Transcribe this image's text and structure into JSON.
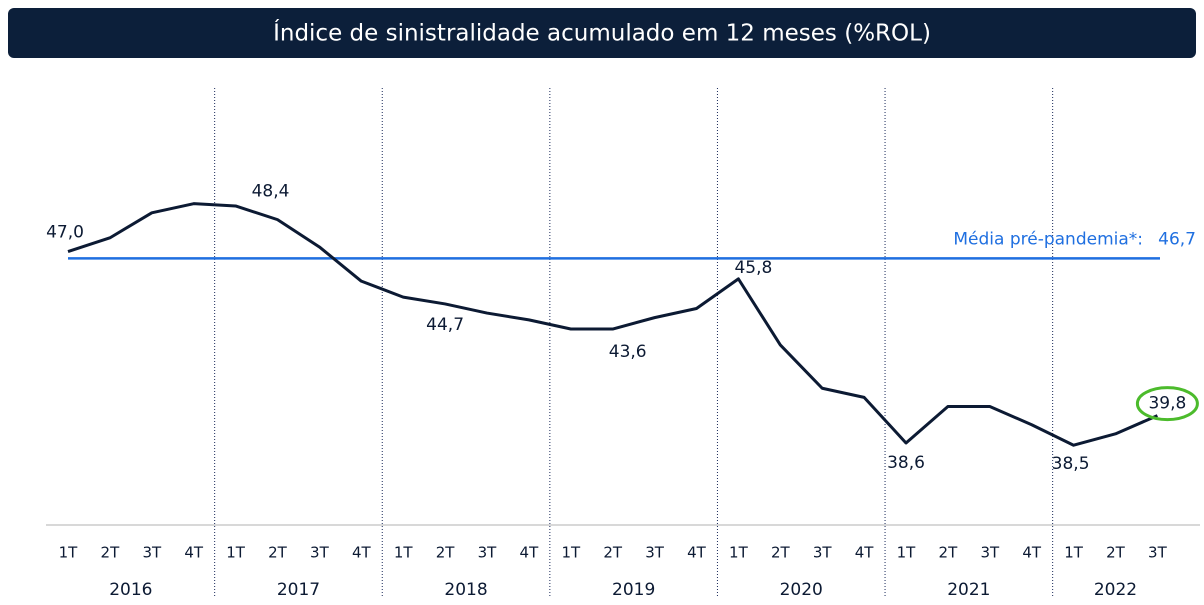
{
  "chart_data": {
    "type": "line",
    "title": "Índice de sinistralidade acumulado em 12 meses (%ROL)",
    "groups": [
      {
        "name": "2016",
        "categories": [
          "1T",
          "2T",
          "3T",
          "4T"
        ]
      },
      {
        "name": "2017",
        "categories": [
          "1T",
          "2T",
          "3T",
          "4T"
        ]
      },
      {
        "name": "2018",
        "categories": [
          "1T",
          "2T",
          "3T",
          "4T"
        ]
      },
      {
        "name": "2019",
        "categories": [
          "1T",
          "2T",
          "3T",
          "4T"
        ]
      },
      {
        "name": "2020",
        "categories": [
          "1T",
          "2T",
          "3T",
          "4T"
        ]
      },
      {
        "name": "2021",
        "categories": [
          "1T",
          "2T",
          "3T",
          "4T"
        ]
      },
      {
        "name": "2022",
        "categories": [
          "1T",
          "2T",
          "3T"
        ]
      }
    ],
    "color": "#0c1a33",
    "values": [
      47.0,
      47.6,
      48.7,
      49.1,
      49.0,
      48.4,
      47.2,
      45.7,
      45.0,
      44.7,
      44.3,
      44.0,
      43.6,
      43.6,
      44.1,
      44.5,
      45.8,
      42.9,
      41.0,
      40.6,
      38.6,
      40.2,
      40.2,
      39.4,
      38.5,
      39.0,
      39.8
    ],
    "value_labels": [
      "47,0",
      null,
      null,
      null,
      null,
      "48,4",
      null,
      null,
      null,
      "44,7",
      null,
      null,
      null,
      "43,6",
      null,
      null,
      "45,8",
      null,
      null,
      null,
      "38,6",
      null,
      null,
      null,
      "38,5",
      null,
      "39,8"
    ],
    "reference_line": {
      "label": "Média pré-pandemia*:",
      "value": 46.7,
      "value_label": "46,7",
      "color": "#1f6fe0"
    },
    "ylim": [
      35,
      54
    ]
  }
}
